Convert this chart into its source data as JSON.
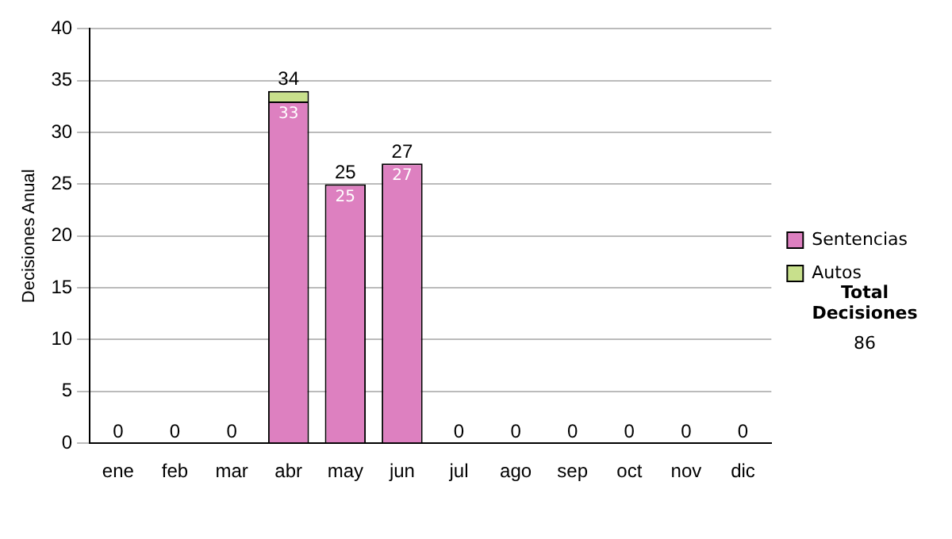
{
  "chart_data": {
    "type": "bar",
    "stacked": true,
    "ylabel": "Decisiones Anual",
    "categories": [
      "ene",
      "feb",
      "mar",
      "abr",
      "may",
      "jun",
      "jul",
      "ago",
      "sep",
      "oct",
      "nov",
      "dic"
    ],
    "series": [
      {
        "name": "Sentencias",
        "color": "#dd80c0",
        "values": [
          0,
          0,
          0,
          33,
          25,
          27,
          0,
          0,
          0,
          0,
          0,
          0
        ],
        "value_labels": [
          null,
          null,
          null,
          "33",
          "25",
          "27",
          null,
          null,
          null,
          null,
          null,
          null
        ]
      },
      {
        "name": "Autos",
        "color": "#c8e08c",
        "values": [
          0,
          0,
          0,
          1,
          0,
          0,
          0,
          0,
          0,
          0,
          0,
          0
        ]
      }
    ],
    "totals": [
      "0",
      "0",
      "0",
      "34",
      "25",
      "27",
      "0",
      "0",
      "0",
      "0",
      "0",
      "0"
    ],
    "ylim": [
      0,
      40
    ],
    "yticks": [
      0,
      5,
      10,
      15,
      20,
      25,
      30,
      35,
      40
    ],
    "grid": "y",
    "legend": "right",
    "annotations": [
      "Total Decisiones",
      "86"
    ]
  }
}
